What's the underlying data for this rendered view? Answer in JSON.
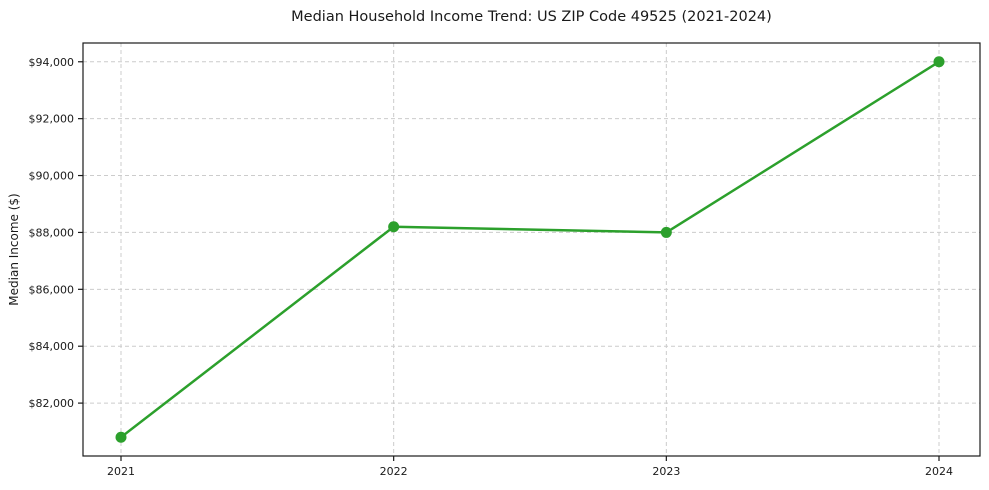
{
  "chart_data": {
    "type": "line",
    "title": "Median Household Income Trend: US ZIP Code 49525 (2021-2024)",
    "xlabel": "",
    "ylabel": "Median Income ($)",
    "categories": [
      "2021",
      "2022",
      "2023",
      "2024"
    ],
    "series": [
      {
        "name": "Median Household Income",
        "values": [
          80800,
          88200,
          88000,
          94000
        ]
      }
    ],
    "y_ticks": [
      {
        "value": 82000,
        "label": "$82,000"
      },
      {
        "value": 84000,
        "label": "$84,000"
      },
      {
        "value": 86000,
        "label": "$86,000"
      },
      {
        "value": 88000,
        "label": "$88,000"
      },
      {
        "value": 90000,
        "label": "$90,000"
      },
      {
        "value": 92000,
        "label": "$92,000"
      },
      {
        "value": 94000,
        "label": "$94,000"
      }
    ],
    "ylim": [
      80140,
      94660
    ],
    "grid": true,
    "grid_style": "dashed",
    "legend": false,
    "colors": {
      "line": "#2ca02c",
      "marker": "#2ca02c",
      "grid": "#cccccc",
      "spine": "#1a1a1a",
      "text": "#1a1a1a"
    }
  }
}
